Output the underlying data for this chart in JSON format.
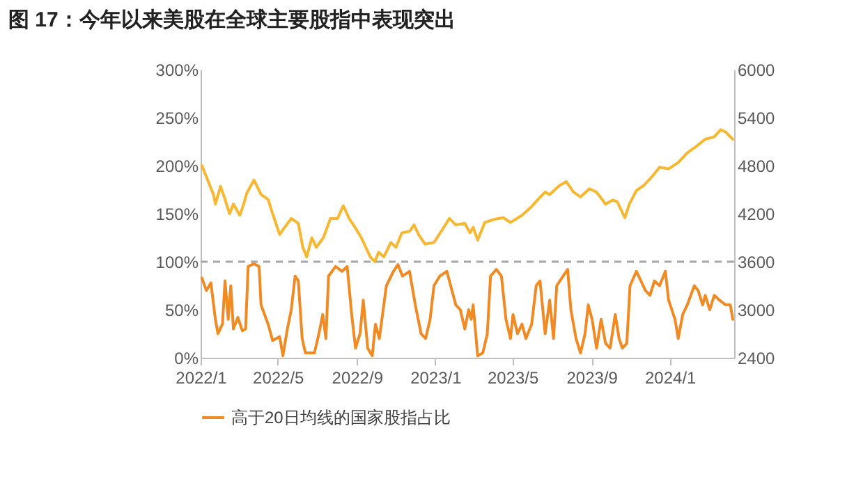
{
  "chart_data": {
    "type": "line",
    "title": "图 17：今年以来美股在全球主要股指中表现突出",
    "xlim": [
      "2022-01-01",
      "2024-04-10"
    ],
    "xticks": [
      {
        "value": "2022-01-01",
        "label": "2022/1"
      },
      {
        "value": "2022-05-01",
        "label": "2022/5"
      },
      {
        "value": "2022-09-01",
        "label": "2022/9"
      },
      {
        "value": "2023-01-01",
        "label": "2023/1"
      },
      {
        "value": "2023-05-01",
        "label": "2023/5"
      },
      {
        "value": "2023-09-01",
        "label": "2023/9"
      },
      {
        "value": "2024-01-01",
        "label": "2024/1"
      }
    ],
    "ylim": [
      0,
      300
    ],
    "yticks": [
      {
        "value": 0,
        "label": "0%"
      },
      {
        "value": 50,
        "label": "50%"
      },
      {
        "value": 100,
        "label": "100%"
      },
      {
        "value": 150,
        "label": "150%"
      },
      {
        "value": 200,
        "label": "200%"
      },
      {
        "value": 250,
        "label": "250%"
      },
      {
        "value": 300,
        "label": "300%"
      }
    ],
    "y2lim": [
      2400,
      6000
    ],
    "y2ticks": [
      2400,
      3000,
      3600,
      4200,
      4800,
      5400,
      6000
    ],
    "grid": false,
    "legend": "bottom",
    "ref_lines": [
      {
        "axis": "y",
        "value": 100,
        "color": "#a6a6a6",
        "line_style": "dashed"
      }
    ],
    "series": [
      {
        "name": "高于20日均线的国家股指占比",
        "color": "#f08a24",
        "x": [
          "2022-01-03",
          "2022-01-10",
          "2022-01-17",
          "2022-01-24",
          "2022-01-28",
          "2022-02-04",
          "2022-02-08",
          "2022-02-13",
          "2022-02-17",
          "2022-02-21",
          "2022-02-28",
          "2022-03-07",
          "2022-03-12",
          "2022-03-16",
          "2022-03-25",
          "2022-04-02",
          "2022-04-05",
          "2022-04-16",
          "2022-04-23",
          "2022-05-04",
          "2022-05-09",
          "2022-05-16",
          "2022-05-22",
          "2022-05-28",
          "2022-06-02",
          "2022-06-08",
          "2022-06-13",
          "2022-06-27",
          "2022-07-04",
          "2022-07-10",
          "2022-07-15",
          "2022-07-19",
          "2022-07-30",
          "2022-08-09",
          "2022-08-17",
          "2022-08-24",
          "2022-08-30",
          "2022-09-06",
          "2022-09-11",
          "2022-09-18",
          "2022-09-25",
          "2022-09-30",
          "2022-10-06",
          "2022-10-17",
          "2022-10-28",
          "2022-11-04",
          "2022-11-11",
          "2022-11-22",
          "2022-12-01",
          "2022-12-10",
          "2022-12-17",
          "2022-12-24",
          "2022-12-30",
          "2023-01-08",
          "2023-01-19",
          "2023-01-27",
          "2023-02-02",
          "2023-02-09",
          "2023-02-16",
          "2023-02-22",
          "2023-02-26",
          "2023-03-01",
          "2023-03-08",
          "2023-03-16",
          "2023-03-23",
          "2023-03-28",
          "2023-04-06",
          "2023-04-14",
          "2023-04-21",
          "2023-04-28",
          "2023-05-02",
          "2023-05-09",
          "2023-05-16",
          "2023-05-22",
          "2023-05-31",
          "2023-06-07",
          "2023-06-13",
          "2023-06-21",
          "2023-06-28",
          "2023-07-04",
          "2023-07-09",
          "2023-07-19",
          "2023-07-26",
          "2023-07-31",
          "2023-08-08",
          "2023-08-15",
          "2023-08-22",
          "2023-08-27",
          "2023-09-02",
          "2023-09-09",
          "2023-09-16",
          "2023-09-23",
          "2023-09-30",
          "2023-10-08",
          "2023-10-14",
          "2023-10-19",
          "2023-10-26",
          "2023-10-31",
          "2023-11-10",
          "2023-11-17",
          "2023-11-24",
          "2023-12-01",
          "2023-12-08",
          "2023-12-16",
          "2023-12-25",
          "2023-12-30",
          "2024-01-09",
          "2024-01-14",
          "2024-01-21",
          "2024-01-28",
          "2024-02-08",
          "2024-02-14",
          "2024-02-21",
          "2024-02-25",
          "2024-03-03",
          "2024-03-10",
          "2024-03-18",
          "2024-03-28",
          "2024-04-04",
          "2024-04-08"
        ],
        "values": [
          83,
          70,
          78,
          40,
          25,
          35,
          80,
          40,
          75,
          30,
          42,
          28,
          30,
          95,
          98,
          95,
          55,
          35,
          18,
          22,
          2,
          30,
          50,
          85,
          80,
          20,
          5,
          5,
          25,
          45,
          20,
          85,
          95,
          90,
          95,
          45,
          10,
          25,
          60,
          10,
          2,
          35,
          20,
          75,
          90,
          97,
          85,
          90,
          55,
          25,
          20,
          40,
          75,
          85,
          90,
          70,
          55,
          50,
          30,
          50,
          40,
          55,
          2,
          5,
          25,
          85,
          92,
          85,
          40,
          20,
          45,
          25,
          35,
          20,
          35,
          75,
          80,
          25,
          60,
          20,
          75,
          85,
          92,
          50,
          20,
          5,
          25,
          55,
          40,
          10,
          40,
          15,
          10,
          45,
          20,
          10,
          15,
          75,
          90,
          80,
          70,
          65,
          80,
          75,
          90,
          60,
          40,
          20,
          45,
          55,
          75,
          70,
          55,
          65,
          50,
          65,
          60,
          55,
          55,
          40
        ]
      },
      {
        "color": "#f7b731",
        "axis": "y2",
        "x": [
          "2022-01-03",
          "2022-01-10",
          "2022-01-21",
          "2022-01-24",
          "2022-02-01",
          "2022-02-08",
          "2022-02-15",
          "2022-02-21",
          "2022-03-03",
          "2022-03-09",
          "2022-03-14",
          "2022-03-25",
          "2022-04-05",
          "2022-04-16",
          "2022-04-23",
          "2022-05-04",
          "2022-05-11",
          "2022-05-22",
          "2022-06-02",
          "2022-06-09",
          "2022-06-15",
          "2022-06-23",
          "2022-06-30",
          "2022-07-11",
          "2022-07-22",
          "2022-08-02",
          "2022-08-11",
          "2022-08-20",
          "2022-08-30",
          "2022-09-08",
          "2022-09-15",
          "2022-09-22",
          "2022-09-29",
          "2022-10-05",
          "2022-10-13",
          "2022-10-24",
          "2022-11-01",
          "2022-11-10",
          "2022-11-22",
          "2022-11-29",
          "2022-12-06",
          "2022-12-16",
          "2022-12-30",
          "2023-01-12",
          "2023-01-23",
          "2023-02-02",
          "2023-02-16",
          "2023-02-24",
          "2023-03-01",
          "2023-03-08",
          "2023-03-19",
          "2023-04-03",
          "2023-04-17",
          "2023-04-28",
          "2023-05-16",
          "2023-05-31",
          "2023-06-10",
          "2023-06-21",
          "2023-06-28",
          "2023-07-13",
          "2023-07-24",
          "2023-08-04",
          "2023-08-15",
          "2023-08-29",
          "2023-09-09",
          "2023-09-23",
          "2023-10-04",
          "2023-10-11",
          "2023-10-23",
          "2023-10-30",
          "2023-11-10",
          "2023-11-21",
          "2023-12-05",
          "2023-12-16",
          "2023-12-30",
          "2024-01-14",
          "2024-01-28",
          "2024-02-11",
          "2024-02-25",
          "2024-03-10",
          "2024-03-20",
          "2024-03-28",
          "2024-04-04",
          "2024-04-08"
        ],
        "values": [
          4800,
          4660,
          4440,
          4320,
          4540,
          4380,
          4200,
          4320,
          4180,
          4320,
          4460,
          4620,
          4440,
          4380,
          4200,
          3940,
          4020,
          4140,
          4080,
          3780,
          3660,
          3900,
          3780,
          3900,
          4140,
          4140,
          4300,
          4140,
          4020,
          3900,
          3780,
          3660,
          3600,
          3720,
          3660,
          3840,
          3780,
          3960,
          3980,
          4060,
          3940,
          3820,
          3840,
          4000,
          4140,
          4060,
          4080,
          3960,
          4030,
          3870,
          4090,
          4130,
          4150,
          4090,
          4180,
          4290,
          4380,
          4470,
          4440,
          4550,
          4600,
          4470,
          4410,
          4510,
          4470,
          4320,
          4370,
          4350,
          4150,
          4320,
          4490,
          4550,
          4670,
          4780,
          4760,
          4840,
          4960,
          5040,
          5130,
          5160,
          5250,
          5220,
          5160,
          5130
        ]
      }
    ]
  }
}
